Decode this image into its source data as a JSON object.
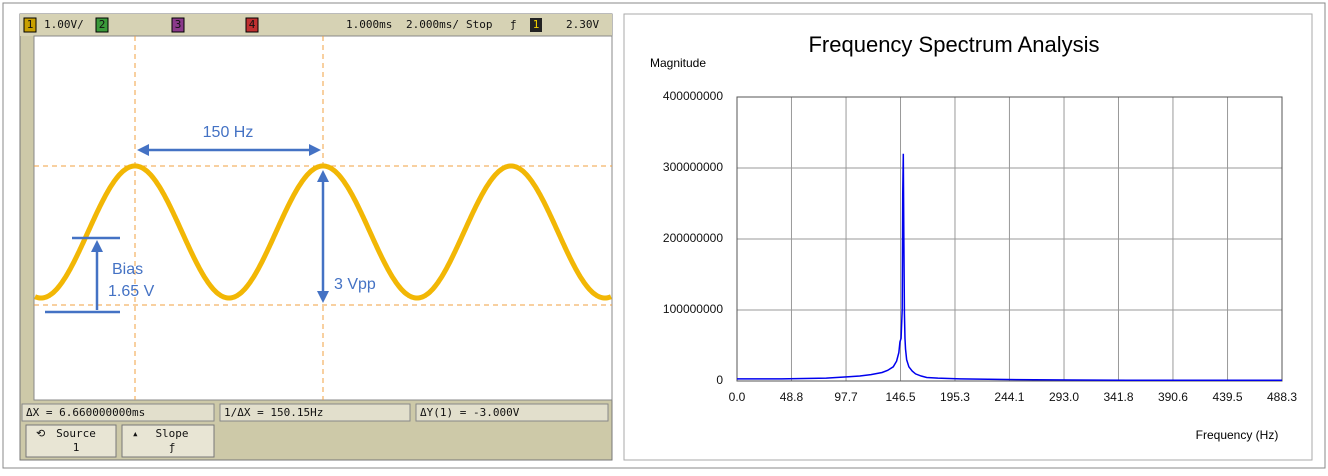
{
  "oscilloscope": {
    "header": {
      "ch1": "1",
      "scale1": "1.00V/",
      "ch2": "2",
      "ch3": "3",
      "ch4": "4",
      "delay": "1.000ms",
      "timebase": "2.000ms/",
      "state": "Stop",
      "trigger_slope": "ƒ",
      "trigger_source": "1",
      "trigger_level": "2.30V"
    },
    "annotations": {
      "period": "150 Hz",
      "amplitude": "3 Vpp",
      "bias_label": "Bias",
      "bias_value": "1.65 V"
    },
    "measurements": [
      "ΔX = 6.660000000ms",
      "1/ΔX = 150.15Hz",
      "ΔY(1) = -3.000V"
    ],
    "softkeys": [
      {
        "label": "Source",
        "value": "1"
      },
      {
        "label": "Slope",
        "value": "ƒ"
      }
    ]
  },
  "chart_data": {
    "type": "line",
    "title": "Frequency Spectrum Analysis",
    "ylabel": "Magnitude",
    "xlabel": "Frequency (Hz)",
    "color": "#0000ee",
    "grid": true,
    "xlim": [
      0,
      488.3
    ],
    "ylim": [
      0,
      400000000
    ],
    "xticks": [
      {
        "value": 0,
        "label": "0.0"
      },
      48.8,
      97.7,
      146.5,
      195.3,
      244.1,
      {
        "value": 293,
        "label": "293.0"
      },
      341.8,
      390.6,
      439.5,
      488.3
    ],
    "yticks": [
      0,
      100000000,
      200000000,
      300000000,
      400000000
    ],
    "x": [
      0,
      20,
      40,
      60,
      80,
      100,
      110,
      120,
      130,
      135,
      140,
      143,
      145,
      146,
      147,
      148,
      148.5,
      149,
      149.5,
      150,
      150.5,
      151,
      152,
      154,
      157,
      160,
      165,
      170,
      180,
      200,
      250,
      300,
      350,
      400,
      450,
      488.3
    ],
    "values": [
      3000000,
      3000000,
      3000000,
      3500000,
      4000000,
      6000000,
      7000000,
      9000000,
      12000000,
      15000000,
      20000000,
      28000000,
      40000000,
      55000000,
      60000000,
      100000000,
      265000000,
      320000000,
      200000000,
      95000000,
      60000000,
      45000000,
      30000000,
      20000000,
      14000000,
      10000000,
      7000000,
      5000000,
      4000000,
      3000000,
      2000000,
      1500000,
      1000000,
      1000000,
      1000000,
      1000000
    ]
  }
}
